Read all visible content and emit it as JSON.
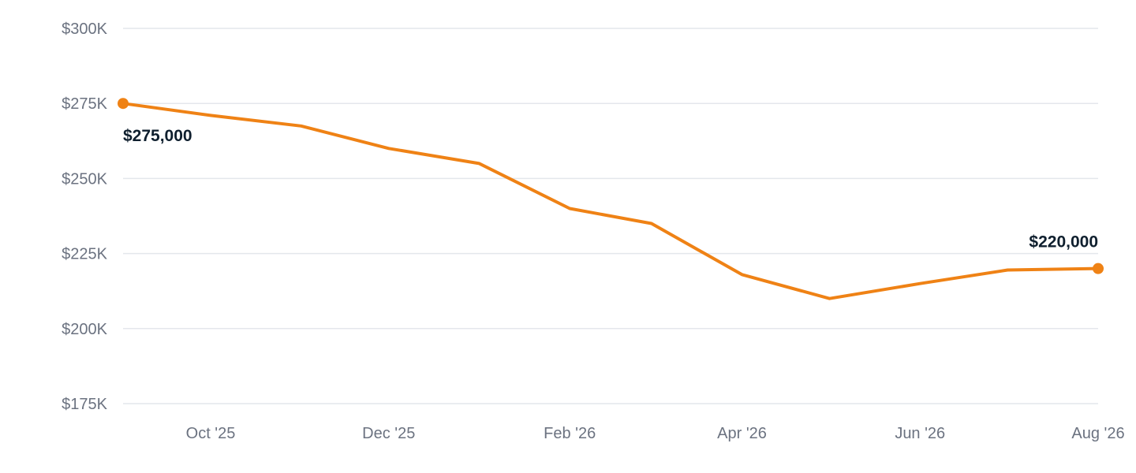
{
  "colors": {
    "series": "#ef8215",
    "grid": "#e4e7ec",
    "tick_text": "#6b7280",
    "label_text": "#0f1f2e"
  },
  "chart_data": {
    "type": "line",
    "title": "",
    "xlabel": "",
    "ylabel": "",
    "ylim": [
      175000,
      300000
    ],
    "y_ticks": [
      {
        "value": 300000,
        "label": "$300K"
      },
      {
        "value": 275000,
        "label": "$275K"
      },
      {
        "value": 250000,
        "label": "$250K"
      },
      {
        "value": 225000,
        "label": "$225K"
      },
      {
        "value": 200000,
        "label": "$200K"
      },
      {
        "value": 175000,
        "label": "$175K"
      }
    ],
    "x": [
      "2025-09-01",
      "2025-10-01",
      "2025-11-01",
      "2025-12-01",
      "2026-01-01",
      "2026-02-01",
      "2026-03-01",
      "2026-04-01",
      "2026-05-01",
      "2026-06-01",
      "2026-07-01",
      "2026-08-01"
    ],
    "x_ticks": [
      {
        "value": "2025-10-01",
        "label": "Oct '25"
      },
      {
        "value": "2025-12-01",
        "label": "Dec '25"
      },
      {
        "value": "2026-02-01",
        "label": "Feb '26"
      },
      {
        "value": "2026-04-01",
        "label": "Apr '26"
      },
      {
        "value": "2026-06-01",
        "label": "Jun '26"
      },
      {
        "value": "2026-08-01",
        "label": "Aug '26"
      }
    ],
    "series": [
      {
        "values": [
          275000,
          271000,
          267500,
          260000,
          255000,
          240000,
          235000,
          218000,
          210000,
          215000,
          219500,
          220000
        ]
      }
    ],
    "annotations": [
      {
        "index": 0,
        "label": "$275,000",
        "position": "below"
      },
      {
        "index": 11,
        "label": "$220,000",
        "position": "above"
      }
    ],
    "grid": true,
    "legend": "none"
  }
}
